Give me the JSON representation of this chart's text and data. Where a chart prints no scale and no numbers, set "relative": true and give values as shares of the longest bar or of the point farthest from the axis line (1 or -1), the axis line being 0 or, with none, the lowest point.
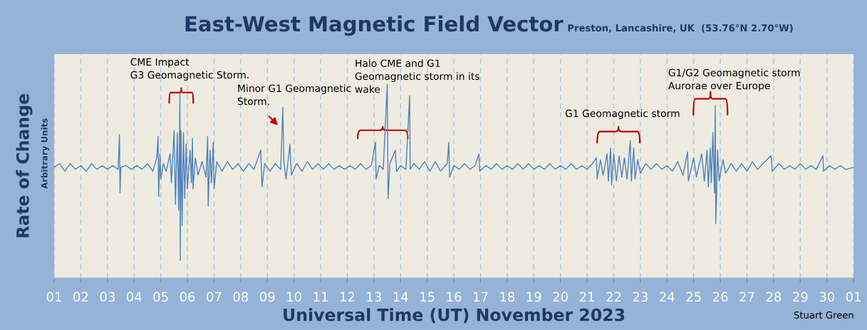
{
  "chart_data": {
    "type": "line",
    "relative": true,
    "title": "East-West Magnetic Field Vector",
    "subtitle": "Preston, Lancashire, UK  (53.76°N 2.70°W)",
    "xlabel": "Universal Time (UT) November 2023",
    "ylabel": "Rate of Change",
    "annotations": [
      "Arbitrary Units",
      "Stuart Green",
      "CME Impact\nG3 Geomagnetic Storm.",
      "Minor G1 Geomagnetic\nStorm.",
      "Halo CME and G1\nGeomagnetic storm in its\nwake",
      "G1 Geomagnetic storm",
      "G1/G2 Geomagnetic storm\nAurorae over Europe"
    ],
    "xlim": [
      "2023-11-01",
      "2023-12-01"
    ],
    "xticks": [
      {
        "value": "2023-11-01",
        "label": "01"
      },
      {
        "value": "2023-11-02",
        "label": "02"
      },
      {
        "value": "2023-11-03",
        "label": "03"
      },
      {
        "value": "2023-11-04",
        "label": "04"
      },
      {
        "value": "2023-11-05",
        "label": "05"
      },
      {
        "value": "2023-11-06",
        "label": "06"
      },
      {
        "value": "2023-11-07",
        "label": "07"
      },
      {
        "value": "2023-11-08",
        "label": "08"
      },
      {
        "value": "2023-11-09",
        "label": "09"
      },
      {
        "value": "2023-11-10",
        "label": "10"
      },
      {
        "value": "2023-11-11",
        "label": "11"
      },
      {
        "value": "2023-11-12",
        "label": "12"
      },
      {
        "value": "2023-11-13",
        "label": "13"
      },
      {
        "value": "2023-11-14",
        "label": "14"
      },
      {
        "value": "2023-11-15",
        "label": "15"
      },
      {
        "value": "2023-11-16",
        "label": "16"
      },
      {
        "value": "2023-11-17",
        "label": "17"
      },
      {
        "value": "2023-11-18",
        "label": "18"
      },
      {
        "value": "2023-11-19",
        "label": "19"
      },
      {
        "value": "2023-11-20",
        "label": "20"
      },
      {
        "value": "2023-11-21",
        "label": "21"
      },
      {
        "value": "2023-11-22",
        "label": "22"
      },
      {
        "value": "2023-11-23",
        "label": "23"
      },
      {
        "value": "2023-11-24",
        "label": "24"
      },
      {
        "value": "2023-11-25",
        "label": "25"
      },
      {
        "value": "2023-11-26",
        "label": "26"
      },
      {
        "value": "2023-11-27",
        "label": "27"
      },
      {
        "value": "2023-11-28",
        "label": "28"
      },
      {
        "value": "2023-11-29",
        "label": "29"
      },
      {
        "value": "2023-11-30",
        "label": "30"
      },
      {
        "value": "2023-12-01",
        "label": "01"
      }
    ],
    "tick_labels": "x",
    "grid": "x",
    "series": [
      {
        "color": "#4f81bd",
        "x": [
          "2023-11-01T00:00",
          "2023-11-01T04:48",
          "2023-11-01T09:36",
          "2023-11-01T14:24",
          "2023-11-01T19:12",
          "2023-11-02T00:00",
          "2023-11-02T04:48",
          "2023-11-02T09:36",
          "2023-11-02T14:24",
          "2023-11-02T19:12",
          "2023-11-03T00:00",
          "2023-11-03T04:48",
          "2023-11-03T09:36",
          "2023-11-03T10:48",
          "2023-11-03T11:17",
          "2023-11-03T12:00",
          "2023-11-03T16:48",
          "2023-11-03T21:36",
          "2023-11-04T02:24",
          "2023-11-04T07:12",
          "2023-11-04T12:00",
          "2023-11-04T16:48",
          "2023-11-04T20:24",
          "2023-11-04T21:36",
          "2023-11-04T22:05",
          "2023-11-04T23:17",
          "2023-11-05T00:00",
          "2023-11-05T02:24",
          "2023-11-05T04:48",
          "2023-11-05T08:24",
          "2023-11-05T09:36",
          "2023-11-05T12:00",
          "2023-11-05T13:12",
          "2023-11-05T14:53",
          "2023-11-05T16:05",
          "2023-11-05T17:17",
          "2023-11-05T17:31",
          "2023-11-05T18:14",
          "2023-11-05T19:12",
          "2023-11-05T20:24",
          "2023-11-05T21:36",
          "2023-11-05T22:48",
          "2023-11-06T00:00",
          "2023-11-06T02:24",
          "2023-11-06T03:36",
          "2023-11-06T04:34",
          "2023-11-06T05:02",
          "2023-11-06T07:12",
          "2023-11-06T09:36",
          "2023-11-06T13:12",
          "2023-11-06T16:48",
          "2023-11-06T18:14",
          "2023-11-06T18:43",
          "2023-11-06T20:24",
          "2023-11-06T21:36",
          "2023-11-06T23:17",
          "2023-11-07T00:00",
          "2023-11-07T02:24",
          "2023-11-07T07:12",
          "2023-11-07T12:00",
          "2023-11-07T16:48",
          "2023-11-07T21:36",
          "2023-11-08T02:24",
          "2023-11-08T07:12",
          "2023-11-08T12:00",
          "2023-11-08T18:00",
          "2023-11-08T19:12",
          "2023-11-08T21:36",
          "2023-11-09T02:24",
          "2023-11-09T07:12",
          "2023-11-09T12:00",
          "2023-11-09T13:55",
          "2023-11-09T14:53",
          "2023-11-09T16:48",
          "2023-11-09T20:24",
          "2023-11-09T21:36",
          "2023-11-10T02:24",
          "2023-11-10T07:12",
          "2023-11-10T12:00",
          "2023-11-10T16:48",
          "2023-11-10T21:36",
          "2023-11-11T02:24",
          "2023-11-11T07:12",
          "2023-11-11T12:00",
          "2023-11-11T16:48",
          "2023-11-11T21:36",
          "2023-11-12T02:24",
          "2023-11-12T07:12",
          "2023-11-12T12:00",
          "2023-11-12T16:48",
          "2023-11-12T21:36",
          "2023-11-13T01:26",
          "2023-11-13T01:55",
          "2023-11-13T04:48",
          "2023-11-13T08:24",
          "2023-11-13T12:00",
          "2023-11-13T12:43",
          "2023-11-13T14:24",
          "2023-11-13T19:12",
          "2023-11-13T20:24",
          "2023-11-14T00:00",
          "2023-11-14T04:48",
          "2023-11-14T08:10",
          "2023-11-14T08:38",
          "2023-11-14T12:00",
          "2023-11-14T16:48",
          "2023-11-14T21:36",
          "2023-11-15T02:24",
          "2023-11-15T07:12",
          "2023-11-15T12:00",
          "2023-11-15T18:00",
          "2023-11-15T19:26",
          "2023-11-15T20:10",
          "2023-11-16T00:00",
          "2023-11-16T04:48",
          "2023-11-16T09:36",
          "2023-11-16T14:24",
          "2023-11-16T19:12",
          "2023-11-16T22:34",
          "2023-11-16T23:17",
          "2023-11-17T04:48",
          "2023-11-17T09:36",
          "2023-11-17T14:24",
          "2023-11-17T19:12",
          "2023-11-18T00:00",
          "2023-11-18T04:48",
          "2023-11-18T09:36",
          "2023-11-18T14:24",
          "2023-11-18T19:12",
          "2023-11-19T00:00",
          "2023-11-19T04:48",
          "2023-11-19T09:36",
          "2023-11-19T14:24",
          "2023-11-19T19:12",
          "2023-11-20T00:00",
          "2023-11-20T04:48",
          "2023-11-20T09:36",
          "2023-11-20T14:24",
          "2023-11-20T19:12",
          "2023-11-21T00:00",
          "2023-11-21T04:48",
          "2023-11-21T08:24",
          "2023-11-21T09:07",
          "2023-11-21T12:00",
          "2023-11-21T14:24",
          "2023-11-21T18:00",
          "2023-11-21T19:12",
          "2023-11-21T21:07",
          "2023-11-21T22:05",
          "2023-11-22T00:00",
          "2023-11-22T02:24",
          "2023-11-22T04:48",
          "2023-11-22T07:12",
          "2023-11-22T09:36",
          "2023-11-22T12:00",
          "2023-11-22T14:53",
          "2023-11-22T15:50",
          "2023-11-22T18:00",
          "2023-11-22T19:12",
          "2023-11-22T21:36",
          "2023-11-23T00:00",
          "2023-11-23T04:48",
          "2023-11-23T09:36",
          "2023-11-23T14:24",
          "2023-11-23T19:12",
          "2023-11-24T00:00",
          "2023-11-24T04:48",
          "2023-11-24T09:36",
          "2023-11-24T14:24",
          "2023-11-24T18:29",
          "2023-11-24T19:12",
          "2023-11-25T00:00",
          "2023-11-25T02:24",
          "2023-11-25T07:12",
          "2023-11-25T09:36",
          "2023-11-25T12:00",
          "2023-11-25T13:12",
          "2023-11-25T14:53",
          "2023-11-25T15:50",
          "2023-11-25T17:17",
          "2023-11-25T18:43",
          "2023-11-25T19:26",
          "2023-11-25T19:55",
          "2023-11-25T21:36",
          "2023-11-25T22:48",
          "2023-11-26T02:24",
          "2023-11-26T04:48",
          "2023-11-26T09:36",
          "2023-11-26T14:24",
          "2023-11-26T19:12",
          "2023-11-27T00:00",
          "2023-11-27T04:48",
          "2023-11-27T09:36",
          "2023-11-27T14:24",
          "2023-11-27T21:36",
          "2023-11-27T22:48",
          "2023-11-28T04:48",
          "2023-11-28T09:36",
          "2023-11-28T14:24",
          "2023-11-28T19:12",
          "2023-11-29T00:00",
          "2023-11-29T04:48",
          "2023-11-29T09:36",
          "2023-11-29T14:24",
          "2023-11-29T20:24",
          "2023-11-29T20:53",
          "2023-11-30T02:24",
          "2023-11-30T07:12",
          "2023-11-30T12:00",
          "2023-11-30T16:48",
          "2023-12-01T00:00"
        ],
        "values": [
          0.57,
          0.59,
          0.55,
          0.59,
          0.56,
          0.58,
          0.55,
          0.59,
          0.56,
          0.58,
          0.56,
          0.58,
          0.56,
          0.74,
          0.44,
          0.57,
          0.58,
          0.56,
          0.58,
          0.56,
          0.59,
          0.55,
          0.62,
          0.73,
          0.42,
          0.64,
          0.51,
          0.59,
          0.55,
          0.64,
          0.49,
          0.76,
          0.38,
          0.75,
          0.35,
          0.95,
          0.09,
          0.76,
          0.27,
          0.75,
          0.41,
          0.69,
          0.46,
          0.66,
          0.49,
          0.72,
          0.46,
          0.62,
          0.53,
          0.6,
          0.52,
          0.73,
          0.37,
          0.66,
          0.49,
          0.7,
          0.46,
          0.6,
          0.55,
          0.6,
          0.56,
          0.59,
          0.55,
          0.59,
          0.56,
          0.66,
          0.47,
          0.59,
          0.55,
          0.59,
          0.56,
          0.88,
          0.6,
          0.51,
          0.69,
          0.53,
          0.59,
          0.55,
          0.6,
          0.56,
          0.59,
          0.56,
          0.59,
          0.56,
          0.58,
          0.56,
          0.58,
          0.56,
          0.59,
          0.56,
          0.58,
          0.7,
          0.51,
          0.58,
          0.56,
          1.0,
          0.41,
          0.59,
          0.66,
          0.55,
          0.58,
          0.56,
          0.94,
          0.56,
          0.59,
          0.56,
          0.6,
          0.55,
          0.6,
          0.55,
          0.59,
          0.7,
          0.52,
          0.58,
          0.56,
          0.59,
          0.56,
          0.58,
          0.64,
          0.55,
          0.58,
          0.56,
          0.59,
          0.56,
          0.58,
          0.56,
          0.59,
          0.56,
          0.59,
          0.56,
          0.58,
          0.56,
          0.59,
          0.56,
          0.58,
          0.56,
          0.59,
          0.56,
          0.58,
          0.56,
          0.59,
          0.62,
          0.51,
          0.61,
          0.53,
          0.64,
          0.5,
          0.67,
          0.48,
          0.64,
          0.5,
          0.63,
          0.52,
          0.62,
          0.51,
          0.71,
          0.5,
          0.67,
          0.51,
          0.61,
          0.54,
          0.59,
          0.56,
          0.59,
          0.56,
          0.58,
          0.55,
          0.6,
          0.53,
          0.65,
          0.5,
          0.62,
          0.52,
          0.64,
          0.5,
          0.66,
          0.47,
          0.67,
          0.49,
          0.75,
          0.44,
          0.89,
          0.28,
          0.66,
          0.5,
          0.61,
          0.54,
          0.59,
          0.55,
          0.59,
          0.55,
          0.6,
          0.56,
          0.59,
          0.63,
          0.55,
          0.59,
          0.56,
          0.58,
          0.56,
          0.59,
          0.56,
          0.58,
          0.56,
          0.63,
          0.55,
          0.58,
          0.56,
          0.58,
          0.56,
          0.57
        ]
      }
    ]
  }
}
